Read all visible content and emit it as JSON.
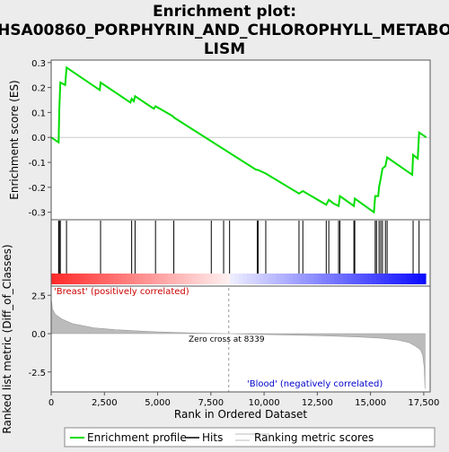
{
  "chart_data": {
    "type": "line",
    "title_lines": [
      "Enrichment plot:",
      "HSA00860_PORPHYRIN_AND_CHLOROPHYLL_METABO",
      "LISM"
    ],
    "es_panel": {
      "ylabel": "Enrichment score (ES)",
      "ylim": [
        -0.33,
        0.31
      ],
      "yticks": [
        -0.3,
        -0.2,
        -0.1,
        0.0,
        0.1,
        0.2,
        0.3
      ],
      "ytick_labels": [
        "-0.3",
        "-0.2",
        "-0.1",
        "0.0",
        "0.1",
        "0.2",
        "0.3"
      ],
      "series_name": "Enrichment profile",
      "color": "#00dd00",
      "points": [
        [
          0,
          0
        ],
        [
          350,
          -0.02
        ],
        [
          380,
          0.11
        ],
        [
          430,
          0.22
        ],
        [
          660,
          0.21
        ],
        [
          720,
          0.28
        ],
        [
          2280,
          0.19
        ],
        [
          2320,
          0.22
        ],
        [
          3720,
          0.14
        ],
        [
          3780,
          0.155
        ],
        [
          3880,
          0.145
        ],
        [
          3940,
          0.165
        ],
        [
          4820,
          0.115
        ],
        [
          4900,
          0.125
        ],
        [
          5720,
          0.085
        ],
        [
          5760,
          0.08
        ],
        [
          9630,
          -0.13
        ],
        [
          9700,
          -0.13
        ],
        [
          10080,
          -0.145
        ],
        [
          11640,
          -0.225
        ],
        [
          11820,
          -0.215
        ],
        [
          12920,
          -0.27
        ],
        [
          13040,
          -0.25
        ],
        [
          13260,
          -0.265
        ],
        [
          13500,
          -0.275
        ],
        [
          13560,
          -0.235
        ],
        [
          14220,
          -0.275
        ],
        [
          14260,
          -0.245
        ],
        [
          15160,
          -0.3
        ],
        [
          15220,
          -0.235
        ],
        [
          15360,
          -0.235
        ],
        [
          15400,
          -0.2
        ],
        [
          15480,
          -0.165
        ],
        [
          15560,
          -0.125
        ],
        [
          15700,
          -0.115
        ],
        [
          15780,
          -0.08
        ],
        [
          16960,
          -0.15
        ],
        [
          17000,
          -0.07
        ],
        [
          17220,
          -0.085
        ],
        [
          17280,
          0.02
        ],
        [
          17620,
          0
        ]
      ]
    },
    "hits": [
      350,
      380,
      430,
      720,
      2320,
      3780,
      3940,
      4900,
      5760,
      7520,
      8100,
      8380,
      9680,
      9720,
      10080,
      11640,
      11820,
      12920,
      13040,
      13500,
      13560,
      14220,
      14260,
      15220,
      15280,
      15400,
      15480,
      15560,
      15700,
      15780,
      17000,
      17280
    ],
    "rank_panel": {
      "ylabel": "Ranked list metric (Diff_of_Classes)",
      "xlabel": "Rank in Ordered Dataset",
      "ylim": [
        -3.8,
        3.1
      ],
      "yticks": [
        -2.5,
        0.0,
        2.5
      ],
      "ytick_labels": [
        "-2.5",
        "0.0",
        "2.5"
      ],
      "fill_color": "#bbbbbb",
      "profile": [
        [
          0,
          2.3
        ],
        [
          60,
          1.6
        ],
        [
          200,
          1.25
        ],
        [
          500,
          0.95
        ],
        [
          1000,
          0.65
        ],
        [
          2000,
          0.38
        ],
        [
          3000,
          0.26
        ],
        [
          4000,
          0.18
        ],
        [
          5000,
          0.12
        ],
        [
          6000,
          0.07
        ],
        [
          7000,
          0.03
        ],
        [
          8339,
          0.0
        ],
        [
          9500,
          -0.04
        ],
        [
          10500,
          -0.07
        ],
        [
          11500,
          -0.1
        ],
        [
          12500,
          -0.13
        ],
        [
          13500,
          -0.17
        ],
        [
          14500,
          -0.22
        ],
        [
          15500,
          -0.3
        ],
        [
          16300,
          -0.42
        ],
        [
          16800,
          -0.58
        ],
        [
          17100,
          -0.8
        ],
        [
          17350,
          -1.05
        ],
        [
          17450,
          -1.4
        ],
        [
          17520,
          -2.2
        ],
        [
          17560,
          -3.6
        ]
      ]
    },
    "xlim": [
      0,
      17800
    ],
    "xticks": [
      0,
      2500,
      5000,
      7500,
      10000,
      12500,
      15000,
      17500
    ],
    "xtick_labels": [
      "0",
      "2,500",
      "5,000",
      "7,500",
      "10,000",
      "12,500",
      "15,000",
      "17,500"
    ],
    "n_genes": 17600,
    "zero_cross": 8339,
    "zero_cross_label": "Zero cross at 8339",
    "pos_label": "'Breast' (positively correlated)",
    "neg_label": "'Blood' (negatively correlated)",
    "legend": [
      {
        "label": "Enrichment profile",
        "color": "#00dd00"
      },
      {
        "label": "Hits",
        "color": "#000000"
      },
      {
        "label": "Ranking metric scores",
        "color": "#bbbbbb"
      }
    ]
  }
}
